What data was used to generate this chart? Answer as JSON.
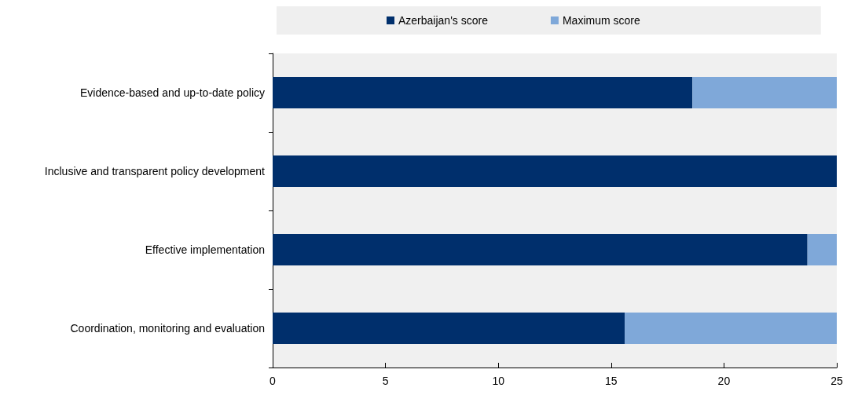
{
  "chart_data": {
    "type": "bar",
    "orientation": "horizontal",
    "stacked": true,
    "categories": [
      "Evidence-based and up-to-date policy",
      "Inclusive and transparent policy development",
      "Effective implementation",
      "Coordination, monitoring and evaluation"
    ],
    "series": [
      {
        "name": "Azerbaijan's score",
        "color": "#002f6c",
        "values": [
          18.6,
          25,
          23.7,
          15.6
        ]
      },
      {
        "name": "Maximum score",
        "color": "#7fa8d9",
        "values": [
          6.4,
          0,
          1.3,
          9.4
        ]
      }
    ],
    "xlim": [
      0,
      25
    ],
    "xticks": [
      0,
      5,
      10,
      15,
      20,
      25
    ],
    "grid": false,
    "legend": "top"
  }
}
